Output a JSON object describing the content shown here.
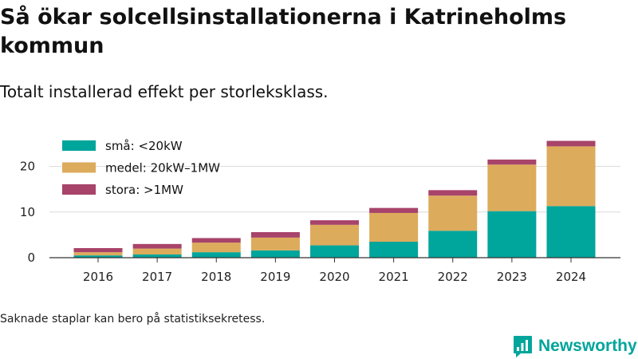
{
  "title": "Så ökar solcellsinstallationerna i Katrineholms kommun",
  "subtitle": "Totalt installerad effekt per storleksklass.",
  "footnote": "Saknade staplar kan bero på statistiksekretess.",
  "brand": {
    "name": "Newsworthy",
    "icon": "newsworthy-logo-icon",
    "color": "#00a59b"
  },
  "chart_data": {
    "type": "bar",
    "stacked": true,
    "categories": [
      "2016",
      "2017",
      "2018",
      "2019",
      "2020",
      "2021",
      "2022",
      "2023",
      "2024"
    ],
    "series": [
      {
        "name": "små: <20kW",
        "color": "#00a59b",
        "values": [
          0.5,
          0.7,
          1.2,
          1.6,
          2.7,
          3.5,
          5.9,
          10.2,
          11.3
        ]
      },
      {
        "name": "medel: 20kW–1MW",
        "color": "#dcab5c",
        "values": [
          0.7,
          1.3,
          2.1,
          2.8,
          4.5,
          6.3,
          7.7,
          10.2,
          13.1
        ]
      },
      {
        "name": "stora: >1MW",
        "color": "#a8436a",
        "values": [
          0.9,
          1.0,
          1.0,
          1.2,
          1.0,
          1.1,
          1.2,
          1.1,
          1.2
        ]
      }
    ],
    "y_ticks": [
      0,
      10,
      20
    ],
    "ylim": [
      0,
      27
    ],
    "grid": true,
    "legend": "top-left"
  }
}
